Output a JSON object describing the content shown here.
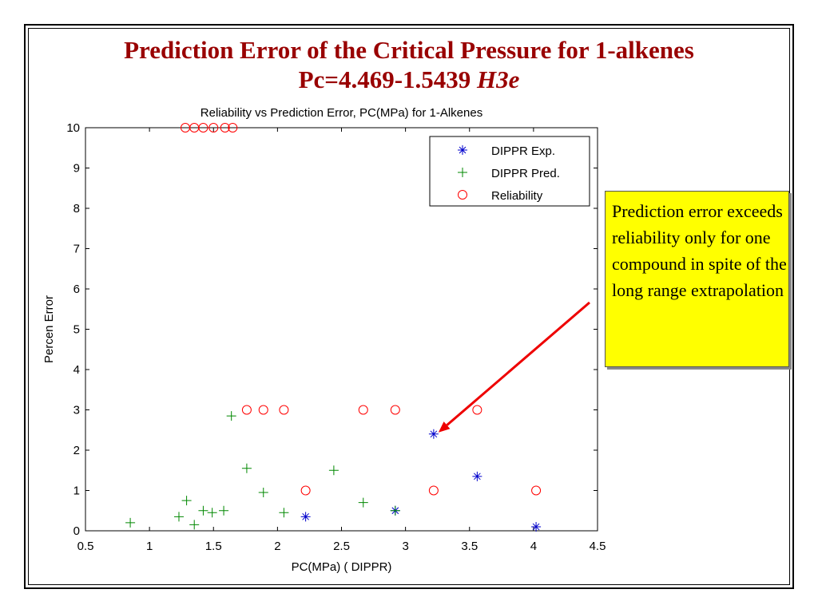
{
  "slide": {
    "title_line1": "Prediction Error of the Critical Pressure for 1-alkenes",
    "title_line2_prefix": "Pc=4.469-1.5439 ",
    "title_line2_var": "H3e"
  },
  "annotation": {
    "text": "Prediction error exceeds reliability only for one compound in spite of the long range extrapolation",
    "arrow_color": "#ee0000",
    "points_to": "DIPPR Exp. at 3.22, 2.4"
  },
  "chart_data": {
    "type": "scatter",
    "title": "Reliability vs Prediction Error, PC(MPa) for 1-Alkenes",
    "xlabel": "PC(MPa) ( DIPPR)",
    "ylabel": "Percen Error",
    "xlim": [
      0.5,
      4.5
    ],
    "ylim": [
      0,
      10
    ],
    "xticks": [
      0.5,
      1,
      1.5,
      2,
      2.5,
      3,
      3.5,
      4,
      4.5
    ],
    "xtick_labels": [
      "0.5",
      "1",
      "1.5",
      "2",
      "2.5",
      "3",
      "3.5",
      "4",
      "4.5"
    ],
    "yticks": [
      0,
      1,
      2,
      3,
      4,
      5,
      6,
      7,
      8,
      9,
      10
    ],
    "ytick_labels": [
      "0",
      "1",
      "2",
      "3",
      "4",
      "5",
      "6",
      "7",
      "8",
      "9",
      "10"
    ],
    "grid": false,
    "legend_position": "top-right",
    "series": [
      {
        "name": "DIPPR Exp.",
        "marker": "star",
        "color": "#0000cc",
        "points": [
          [
            2.22,
            0.35
          ],
          [
            2.92,
            0.5
          ],
          [
            3.22,
            2.4
          ],
          [
            3.56,
            1.35
          ],
          [
            4.02,
            0.1
          ]
        ]
      },
      {
        "name": "DIPPR Pred.",
        "marker": "plus",
        "color": "#008800",
        "points": [
          [
            0.85,
            0.2
          ],
          [
            1.23,
            0.35
          ],
          [
            1.29,
            0.75
          ],
          [
            1.35,
            0.15
          ],
          [
            1.42,
            0.5
          ],
          [
            1.49,
            0.45
          ],
          [
            1.58,
            0.5
          ],
          [
            1.64,
            2.85
          ],
          [
            1.76,
            1.55
          ],
          [
            1.89,
            0.95
          ],
          [
            2.05,
            0.45
          ],
          [
            2.44,
            1.5
          ],
          [
            2.67,
            0.7
          ],
          [
            2.92,
            0.5
          ]
        ]
      },
      {
        "name": "Reliability",
        "marker": "circle",
        "color": "#ff0000",
        "points": [
          [
            1.28,
            10
          ],
          [
            1.35,
            10
          ],
          [
            1.42,
            10
          ],
          [
            1.5,
            10
          ],
          [
            1.59,
            10
          ],
          [
            1.65,
            10
          ],
          [
            1.76,
            3
          ],
          [
            1.89,
            3
          ],
          [
            2.05,
            3
          ],
          [
            2.22,
            1
          ],
          [
            2.67,
            3
          ],
          [
            2.92,
            3
          ],
          [
            3.22,
            1
          ],
          [
            3.56,
            3
          ],
          [
            4.02,
            1
          ]
        ]
      }
    ]
  }
}
